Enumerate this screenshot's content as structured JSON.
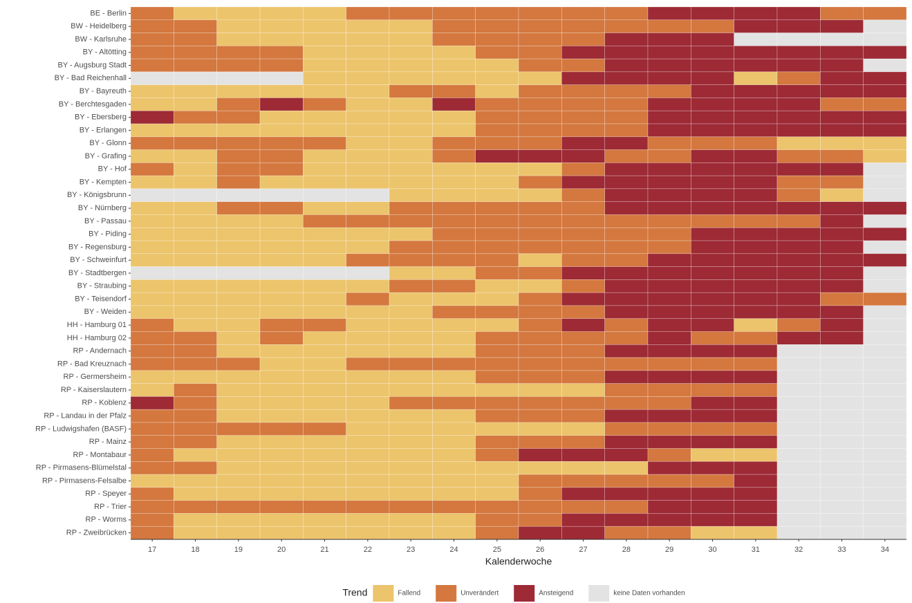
{
  "chart_data": {
    "type": "heatmap",
    "xlabel": "Kalenderwoche",
    "legend_title": "Trend",
    "x": [
      "17",
      "18",
      "19",
      "20",
      "21",
      "22",
      "23",
      "24",
      "25",
      "26",
      "27",
      "28",
      "29",
      "30",
      "31",
      "32",
      "33",
      "34"
    ],
    "categories": [
      "BE - Berlin",
      "BW - Heidelberg",
      "BW - Karlsruhe",
      "BY - Altötting",
      "BY - Augsburg Stadt",
      "BY - Bad Reichenhall",
      "BY - Bayreuth",
      "BY - Berchtesgaden",
      "BY - Ebersberg",
      "BY - Erlangen",
      "BY - Glonn",
      "BY - Grafing",
      "BY - Hof",
      "BY - Kempten",
      "BY - Königsbrunn",
      "BY - Nürnberg",
      "BY - Passau",
      "BY - Piding",
      "BY - Regensburg",
      "BY - Schweinfurt",
      "BY - Stadtbergen",
      "BY - Straubing",
      "BY - Teisendorf",
      "BY - Weiden",
      "HH - Hamburg 01",
      "HH - Hamburg 02",
      "RP - Andernach",
      "RP - Bad Kreuznach",
      "RP - Germersheim",
      "RP - Kaiserslautern",
      "RP - Koblenz",
      "RP - Landau in der Pfalz",
      "RP - Ludwigshafen (BASF)",
      "RP - Mainz",
      "RP - Montabaur",
      "RP - Pirmasens-Blümelstal",
      "RP - Pirmasens-Felsalbe",
      "RP - Speyer",
      "RP - Trier",
      "RP - Worms",
      "RP - Zweibrücken"
    ],
    "levels": [
      {
        "name": "Fallend",
        "color": "#ecc46b"
      },
      {
        "name": "Unverändert",
        "color": "#d4783f"
      },
      {
        "name": "Ansteigend",
        "color": "#9d2a35"
      },
      {
        "name": "keine Daten vorhanden",
        "color": "#e3e3e3"
      }
    ],
    "values": [
      [
        1,
        0,
        0,
        0,
        0,
        1,
        1,
        1,
        1,
        1,
        1,
        1,
        2,
        2,
        2,
        2,
        1,
        1
      ],
      [
        1,
        1,
        0,
        0,
        0,
        0,
        0,
        1,
        1,
        1,
        1,
        1,
        1,
        1,
        2,
        2,
        2,
        3
      ],
      [
        1,
        1,
        0,
        0,
        0,
        0,
        0,
        1,
        1,
        1,
        1,
        2,
        2,
        2,
        3,
        3,
        3,
        3
      ],
      [
        1,
        1,
        1,
        1,
        0,
        0,
        0,
        0,
        1,
        1,
        2,
        2,
        2,
        2,
        2,
        2,
        2,
        2
      ],
      [
        1,
        1,
        1,
        1,
        0,
        0,
        0,
        0,
        0,
        1,
        1,
        2,
        2,
        2,
        2,
        2,
        2,
        3
      ],
      [
        3,
        3,
        3,
        3,
        0,
        0,
        0,
        0,
        0,
        0,
        2,
        2,
        2,
        2,
        0,
        1,
        2,
        2
      ],
      [
        0,
        0,
        0,
        0,
        0,
        0,
        1,
        1,
        0,
        1,
        1,
        1,
        1,
        2,
        2,
        2,
        2,
        2
      ],
      [
        0,
        0,
        1,
        2,
        1,
        0,
        0,
        2,
        1,
        1,
        1,
        1,
        2,
        2,
        2,
        2,
        1,
        1
      ],
      [
        2,
        1,
        1,
        0,
        0,
        0,
        0,
        0,
        1,
        1,
        1,
        1,
        2,
        2,
        2,
        2,
        2,
        2
      ],
      [
        0,
        0,
        0,
        0,
        0,
        0,
        0,
        0,
        1,
        1,
        1,
        1,
        2,
        2,
        2,
        2,
        2,
        2
      ],
      [
        1,
        1,
        1,
        1,
        1,
        0,
        0,
        1,
        1,
        1,
        2,
        2,
        1,
        1,
        1,
        0,
        0,
        0
      ],
      [
        0,
        0,
        1,
        1,
        0,
        0,
        0,
        1,
        2,
        2,
        2,
        1,
        1,
        2,
        2,
        1,
        1,
        0
      ],
      [
        1,
        0,
        1,
        1,
        0,
        0,
        0,
        0,
        0,
        0,
        1,
        2,
        2,
        2,
        2,
        2,
        2,
        3
      ],
      [
        0,
        0,
        1,
        0,
        0,
        0,
        0,
        0,
        0,
        1,
        2,
        2,
        2,
        2,
        2,
        1,
        1,
        3
      ],
      [
        3,
        3,
        3,
        3,
        3,
        3,
        0,
        0,
        0,
        0,
        1,
        2,
        2,
        2,
        2,
        1,
        0,
        3
      ],
      [
        0,
        0,
        1,
        1,
        0,
        0,
        1,
        1,
        1,
        1,
        1,
        2,
        2,
        2,
        2,
        2,
        2,
        2
      ],
      [
        0,
        0,
        0,
        0,
        1,
        1,
        1,
        1,
        1,
        1,
        1,
        1,
        1,
        1,
        1,
        1,
        2,
        3
      ],
      [
        0,
        0,
        0,
        0,
        0,
        0,
        0,
        1,
        1,
        1,
        1,
        1,
        1,
        2,
        2,
        2,
        2,
        2
      ],
      [
        0,
        0,
        0,
        0,
        0,
        0,
        1,
        1,
        1,
        1,
        1,
        1,
        1,
        2,
        2,
        2,
        2,
        3
      ],
      [
        0,
        0,
        0,
        0,
        0,
        1,
        1,
        1,
        1,
        0,
        1,
        1,
        2,
        2,
        2,
        2,
        2,
        2
      ],
      [
        3,
        3,
        3,
        3,
        3,
        3,
        0,
        0,
        1,
        1,
        2,
        2,
        2,
        2,
        2,
        2,
        2,
        3
      ],
      [
        0,
        0,
        0,
        0,
        0,
        0,
        1,
        1,
        0,
        0,
        1,
        2,
        2,
        2,
        2,
        2,
        2,
        3
      ],
      [
        0,
        0,
        0,
        0,
        0,
        1,
        0,
        0,
        0,
        1,
        2,
        2,
        2,
        2,
        2,
        2,
        1,
        1
      ],
      [
        0,
        0,
        0,
        0,
        0,
        0,
        0,
        1,
        1,
        1,
        1,
        2,
        2,
        2,
        2,
        2,
        2,
        3
      ],
      [
        1,
        0,
        0,
        1,
        1,
        0,
        0,
        0,
        0,
        1,
        2,
        1,
        2,
        2,
        0,
        1,
        2,
        3
      ],
      [
        1,
        1,
        0,
        1,
        0,
        0,
        0,
        0,
        1,
        1,
        1,
        1,
        2,
        1,
        1,
        2,
        2,
        3
      ],
      [
        1,
        1,
        0,
        0,
        0,
        0,
        0,
        0,
        1,
        1,
        1,
        2,
        2,
        2,
        2,
        3,
        3,
        3
      ],
      [
        1,
        1,
        1,
        0,
        0,
        1,
        1,
        1,
        1,
        1,
        1,
        1,
        1,
        1,
        1,
        3,
        3,
        3
      ],
      [
        0,
        0,
        0,
        0,
        0,
        0,
        0,
        0,
        1,
        1,
        1,
        2,
        2,
        2,
        2,
        3,
        3,
        3
      ],
      [
        0,
        1,
        0,
        0,
        0,
        0,
        0,
        0,
        0,
        0,
        0,
        1,
        1,
        1,
        1,
        3,
        3,
        3
      ],
      [
        2,
        1,
        0,
        0,
        0,
        0,
        1,
        1,
        1,
        1,
        1,
        1,
        1,
        2,
        2,
        3,
        3,
        3
      ],
      [
        1,
        1,
        0,
        0,
        0,
        0,
        0,
        0,
        1,
        1,
        1,
        2,
        2,
        2,
        2,
        3,
        3,
        3
      ],
      [
        1,
        1,
        1,
        1,
        1,
        0,
        0,
        0,
        0,
        0,
        0,
        1,
        1,
        1,
        1,
        3,
        3,
        3
      ],
      [
        1,
        1,
        0,
        0,
        0,
        0,
        0,
        0,
        1,
        1,
        1,
        2,
        2,
        2,
        2,
        3,
        3,
        3
      ],
      [
        1,
        0,
        0,
        0,
        0,
        0,
        0,
        0,
        1,
        2,
        2,
        2,
        1,
        0,
        0,
        3,
        3,
        3
      ],
      [
        1,
        1,
        0,
        0,
        0,
        0,
        0,
        0,
        0,
        0,
        0,
        0,
        2,
        2,
        2,
        3,
        3,
        3
      ],
      [
        0,
        0,
        0,
        0,
        0,
        0,
        0,
        0,
        0,
        1,
        1,
        1,
        1,
        1,
        2,
        3,
        3,
        3
      ],
      [
        1,
        0,
        0,
        0,
        0,
        0,
        0,
        0,
        0,
        1,
        2,
        2,
        2,
        2,
        2,
        3,
        3,
        3
      ],
      [
        1,
        1,
        1,
        1,
        1,
        1,
        1,
        1,
        1,
        1,
        1,
        1,
        2,
        2,
        2,
        3,
        3,
        3
      ],
      [
        1,
        0,
        0,
        0,
        0,
        0,
        0,
        0,
        1,
        1,
        2,
        2,
        2,
        2,
        2,
        3,
        3,
        3
      ],
      [
        1,
        0,
        0,
        0,
        0,
        0,
        0,
        0,
        1,
        2,
        2,
        1,
        1,
        0,
        0,
        3,
        3,
        3
      ]
    ]
  }
}
